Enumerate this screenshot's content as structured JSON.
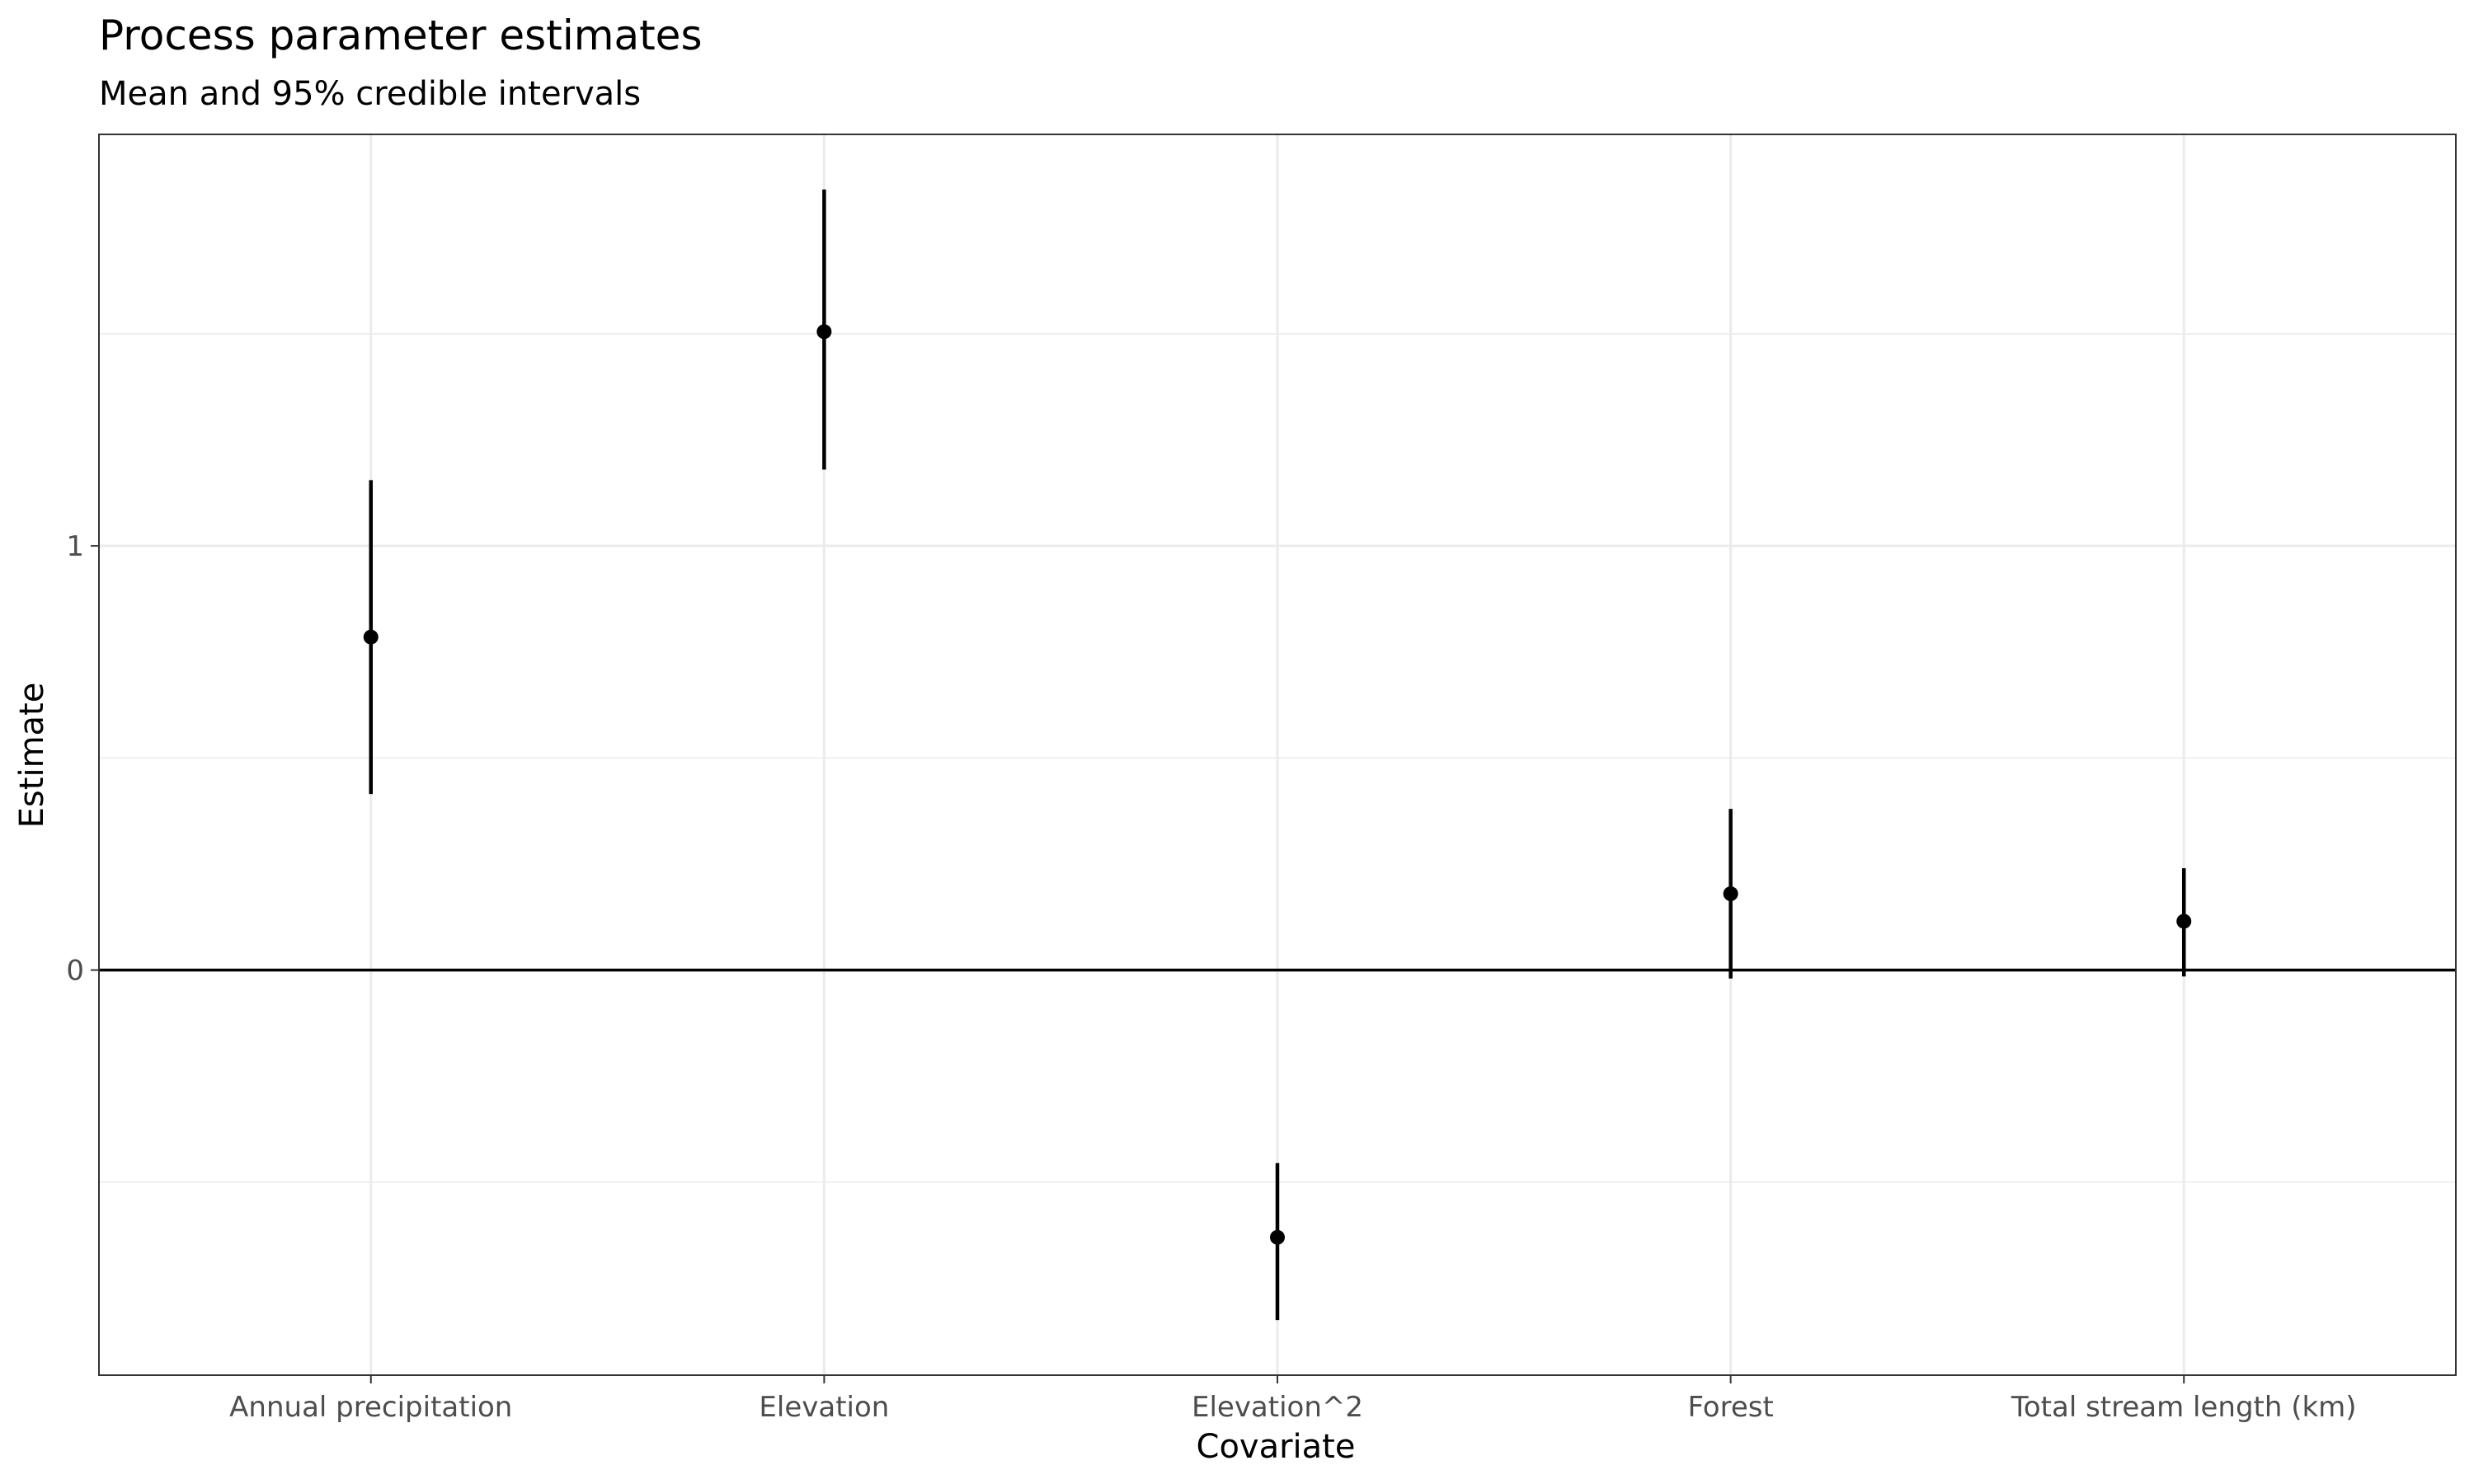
{
  "chart_data": {
    "type": "pointrange",
    "title": "Process parameter estimates",
    "subtitle": "Mean and 95% credible intervals",
    "xlabel": "Covariate",
    "ylabel": "Estimate",
    "ylim": [
      -0.955,
      1.97
    ],
    "y_ticks": [
      0,
      1
    ],
    "y_tick_labels": [
      "0",
      "1"
    ],
    "y_minor_ticks": [
      -0.5,
      0.5,
      1.5
    ],
    "reference_line_y": 0,
    "grid": true,
    "categories": [
      "Annual precipitation",
      "Elevation",
      "Elevation^2",
      "Forest",
      "Total stream length (km)"
    ],
    "series": [
      {
        "name": "Estimate",
        "mean": [
          0.785,
          1.505,
          -0.63,
          0.18,
          0.115
        ],
        "lower": [
          0.415,
          1.18,
          -0.825,
          -0.02,
          -0.015
        ],
        "upper": [
          1.155,
          1.84,
          -0.455,
          0.38,
          0.24
        ]
      }
    ],
    "colors": {
      "point": "#000000",
      "interval": "#000000",
      "grid": "#ebebeb",
      "panel_border": "#333333",
      "reference_line": "#000000",
      "tick_label": "#4d4d4d"
    }
  }
}
